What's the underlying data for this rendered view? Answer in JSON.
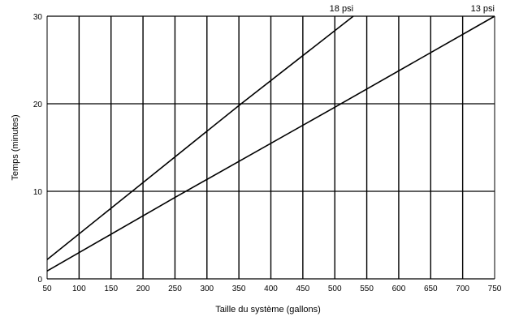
{
  "chart_data": {
    "type": "line",
    "xlabel": "Taille du système (gallons)",
    "ylabel": "Temps (minutes)",
    "xlim": [
      50,
      750
    ],
    "ylim": [
      0,
      30
    ],
    "x_ticks": [
      50,
      100,
      150,
      200,
      250,
      300,
      350,
      400,
      450,
      500,
      550,
      600,
      650,
      700,
      750
    ],
    "y_ticks": [
      0,
      10,
      20,
      30
    ],
    "grid": true,
    "series": [
      {
        "name": "18 psi",
        "x": [
          50,
          200,
          350,
          529
        ],
        "y": [
          2.2,
          11.0,
          19.8,
          30.0
        ]
      },
      {
        "name": "13 psi",
        "x": [
          50,
          250,
          500,
          750
        ],
        "y": [
          0.9,
          9.3,
          19.6,
          30.0
        ]
      }
    ]
  }
}
